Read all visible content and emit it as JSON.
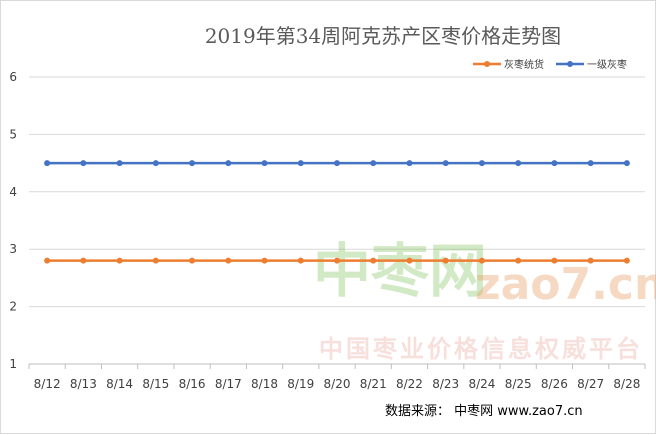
{
  "chart_data": {
    "type": "line",
    "title": "2019年第34周阿克苏产区枣价格走势图",
    "categories": [
      "8/12",
      "8/13",
      "8/14",
      "8/15",
      "8/16",
      "8/17",
      "8/18",
      "8/19",
      "8/20",
      "8/21",
      "8/22",
      "8/23",
      "8/24",
      "8/25",
      "8/26",
      "8/27",
      "8/28"
    ],
    "series": [
      {
        "name": "灰枣统货",
        "color": "#ed7d31",
        "values": [
          2.8,
          2.8,
          2.8,
          2.8,
          2.8,
          2.8,
          2.8,
          2.8,
          2.8,
          2.8,
          2.8,
          2.8,
          2.8,
          2.8,
          2.8,
          2.8,
          2.8
        ]
      },
      {
        "name": "一级灰枣",
        "color": "#4472c4",
        "values": [
          4.5,
          4.5,
          4.5,
          4.5,
          4.5,
          4.5,
          4.5,
          4.5,
          4.5,
          4.5,
          4.5,
          4.5,
          4.5,
          4.5,
          4.5,
          4.5,
          4.5
        ]
      }
    ],
    "ylim": [
      1,
      6
    ],
    "yticks": [
      1,
      2,
      3,
      4,
      5,
      6
    ],
    "grid": true,
    "legend_position": "top-right"
  },
  "watermark": {
    "brand_cn": "中枣网",
    "brand_latin": "zao7.cn",
    "slogan": "中国枣业价格信息权威平台"
  },
  "source": {
    "text": "数据来源：  中枣网 www.zao7.cn"
  }
}
